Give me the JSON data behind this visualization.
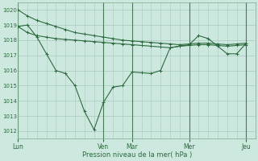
{
  "background_color": "#cde8df",
  "grid_color": "#a8c8bc",
  "line_color": "#2d6a3f",
  "ylabel": "Pression niveau de la mer( hPa )",
  "ylim": [
    1011.5,
    1020.5
  ],
  "yticks": [
    1012,
    1013,
    1014,
    1015,
    1016,
    1017,
    1018,
    1019,
    1020
  ],
  "xtick_labels": [
    "Lun",
    "Ven",
    "Mar",
    "Mer",
    "Jeu"
  ],
  "xtick_positions": [
    0,
    9,
    12,
    18,
    24
  ],
  "xlim": [
    0,
    25
  ],
  "series1": {
    "x": [
      0,
      1,
      2,
      3,
      4,
      5,
      6,
      7,
      8,
      9,
      10,
      11,
      12,
      13,
      14,
      15,
      16,
      17,
      18,
      19,
      20,
      21,
      22,
      23,
      24
    ],
    "y": [
      1020.0,
      1019.6,
      1019.3,
      1019.1,
      1018.9,
      1018.7,
      1018.5,
      1018.4,
      1018.3,
      1018.2,
      1018.1,
      1018.0,
      1017.95,
      1017.9,
      1017.85,
      1017.8,
      1017.75,
      1017.7,
      1017.75,
      1017.8,
      1017.8,
      1017.75,
      1017.7,
      1017.75,
      1017.8
    ]
  },
  "series2": {
    "x": [
      0,
      1,
      2,
      3,
      4,
      5,
      6,
      7,
      8,
      9,
      10,
      11,
      12,
      13,
      14,
      15,
      16,
      17,
      18,
      19,
      20,
      21,
      22,
      23,
      24
    ],
    "y": [
      1018.9,
      1018.5,
      1018.3,
      1018.2,
      1018.1,
      1018.05,
      1018.0,
      1017.95,
      1017.9,
      1017.85,
      1017.8,
      1017.75,
      1017.7,
      1017.65,
      1017.6,
      1017.55,
      1017.5,
      1017.6,
      1017.65,
      1017.7,
      1017.7,
      1017.65,
      1017.6,
      1017.65,
      1017.7
    ]
  },
  "series3": {
    "x": [
      0,
      1,
      2,
      3,
      4,
      5,
      6,
      7,
      8,
      9,
      10,
      11,
      12,
      13,
      14,
      15,
      16,
      17,
      18,
      19,
      20,
      21,
      22,
      23,
      24
    ],
    "y": [
      1018.9,
      1019.0,
      1018.2,
      1017.1,
      1016.0,
      1015.8,
      1015.0,
      1013.3,
      1012.1,
      1013.9,
      1014.9,
      1015.0,
      1015.9,
      1015.85,
      1015.8,
      1016.0,
      1017.5,
      1017.6,
      1017.7,
      1018.3,
      1018.1,
      1017.6,
      1017.1,
      1017.1,
      1017.8
    ]
  }
}
